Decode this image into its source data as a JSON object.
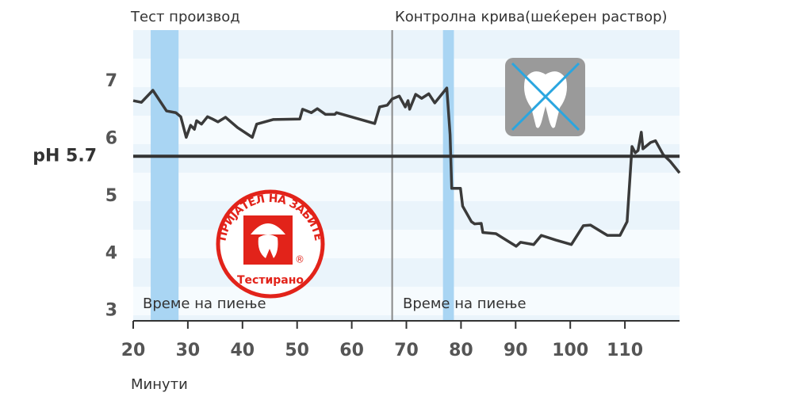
{
  "chart_data": {
    "type": "line",
    "left_section_label": "Тест производ",
    "right_section_label": "Контролна крива(шеќерен раствор)",
    "x_label": "Минути",
    "band_label": "Време на пиење",
    "logo_arc_text": "ПРИЈАТЕЛ НА ЗАБИТЕ",
    "logo_text": "Тестирано",
    "logo_mark": "®",
    "reference_line": {
      "value": 5.7,
      "label": "pH 5.7"
    },
    "divider": 67.4,
    "drinking_bands": [
      [
        23.2,
        28.3
      ],
      [
        76.7,
        78.7
      ]
    ],
    "xlim": [
      20,
      120
    ],
    "xticks": [
      20,
      30,
      40,
      50,
      60,
      70,
      80,
      90,
      100,
      110
    ],
    "ylim": [
      2.83,
      7.9
    ],
    "yticks": [
      3,
      4,
      5,
      6,
      7
    ],
    "series": [
      {
        "name": "pH",
        "color": "#3a3a3a",
        "x": [
          20,
          21.5,
          23.6,
          26.1,
          27.8,
          28.7,
          29.7,
          30.5,
          31.2,
          31.6,
          32.5,
          33.6,
          34.5,
          35.5,
          36.9,
          39.1,
          41.8,
          42.6,
          45.6,
          50.5,
          51.0,
          52.6,
          53.7,
          55.2,
          56.9,
          57.2,
          64.2,
          65.1,
          66.5,
          67.4,
          68.7,
          69.8,
          70.3,
          70.6,
          71.7,
          72.8,
          74.1,
          75.2,
          77.4,
          78.0,
          78.3,
          79.9,
          80.3,
          81.9,
          82.5,
          83.7,
          84.0,
          86.4,
          90.1,
          90.9,
          93.3,
          94.7,
          97.3,
          100.2,
          102.4,
          103.7,
          106.8,
          109.1,
          110.4,
          111.3,
          111.9,
          112.4,
          113.0,
          113.3,
          114.7,
          115.6,
          117.0,
          118.3,
          120
        ],
        "values": [
          6.67,
          6.64,
          6.85,
          6.49,
          6.46,
          6.39,
          6.03,
          6.24,
          6.17,
          6.32,
          6.26,
          6.39,
          6.35,
          6.3,
          6.38,
          6.2,
          6.03,
          6.26,
          6.34,
          6.35,
          6.52,
          6.46,
          6.53,
          6.43,
          6.43,
          6.46,
          6.27,
          6.56,
          6.59,
          6.7,
          6.75,
          6.56,
          6.67,
          6.52,
          6.78,
          6.71,
          6.79,
          6.63,
          6.89,
          6.08,
          5.14,
          5.14,
          4.83,
          4.56,
          4.52,
          4.53,
          4.37,
          4.35,
          4.13,
          4.2,
          4.16,
          4.32,
          4.24,
          4.16,
          4.49,
          4.5,
          4.32,
          4.32,
          4.56,
          5.87,
          5.76,
          5.8,
          6.12,
          5.83,
          5.94,
          5.97,
          5.73,
          5.61,
          5.41
        ]
      }
    ]
  }
}
